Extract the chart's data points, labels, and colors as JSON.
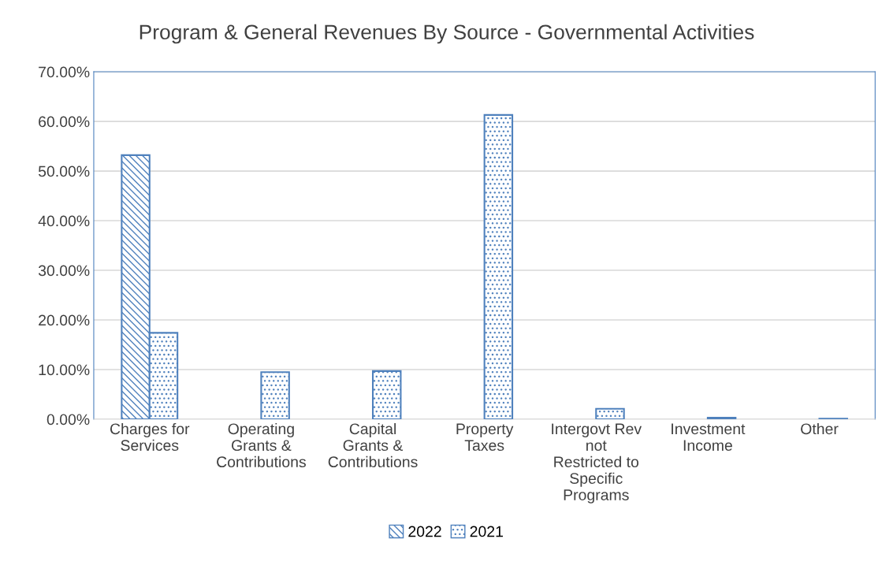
{
  "chart_data": {
    "type": "bar",
    "title": "Program & General Revenues By Source - Governmental Activities",
    "categories": [
      "Charges for Services",
      "Operating Grants & Contributions",
      "Capital Grants & Contributions",
      "Property Taxes",
      "Intergovt Rev not Restricted to Specific Programs",
      "Investment Income",
      "Other"
    ],
    "series": [
      {
        "name": "2022",
        "color": "#4f81bd",
        "values": [
          53.2,
          null,
          null,
          null,
          null,
          null,
          null
        ]
      },
      {
        "name": "2021",
        "color": "#4f81bd",
        "values": [
          17.4,
          9.5,
          9.7,
          61.3,
          2.1,
          0.3,
          0.1
        ]
      }
    ],
    "ylim": [
      0,
      70
    ],
    "yticks": [
      {
        "value": 0,
        "label": "0.00%"
      },
      {
        "value": 10,
        "label": "10.00%"
      },
      {
        "value": 20,
        "label": "20.00%"
      },
      {
        "value": 30,
        "label": "30.00%"
      },
      {
        "value": 40,
        "label": "40.00%"
      },
      {
        "value": 50,
        "label": "50.00%"
      },
      {
        "value": 60,
        "label": "60.00%"
      },
      {
        "value": 70,
        "label": "70.00%"
      }
    ],
    "grid": "y",
    "legend": "bottom"
  }
}
